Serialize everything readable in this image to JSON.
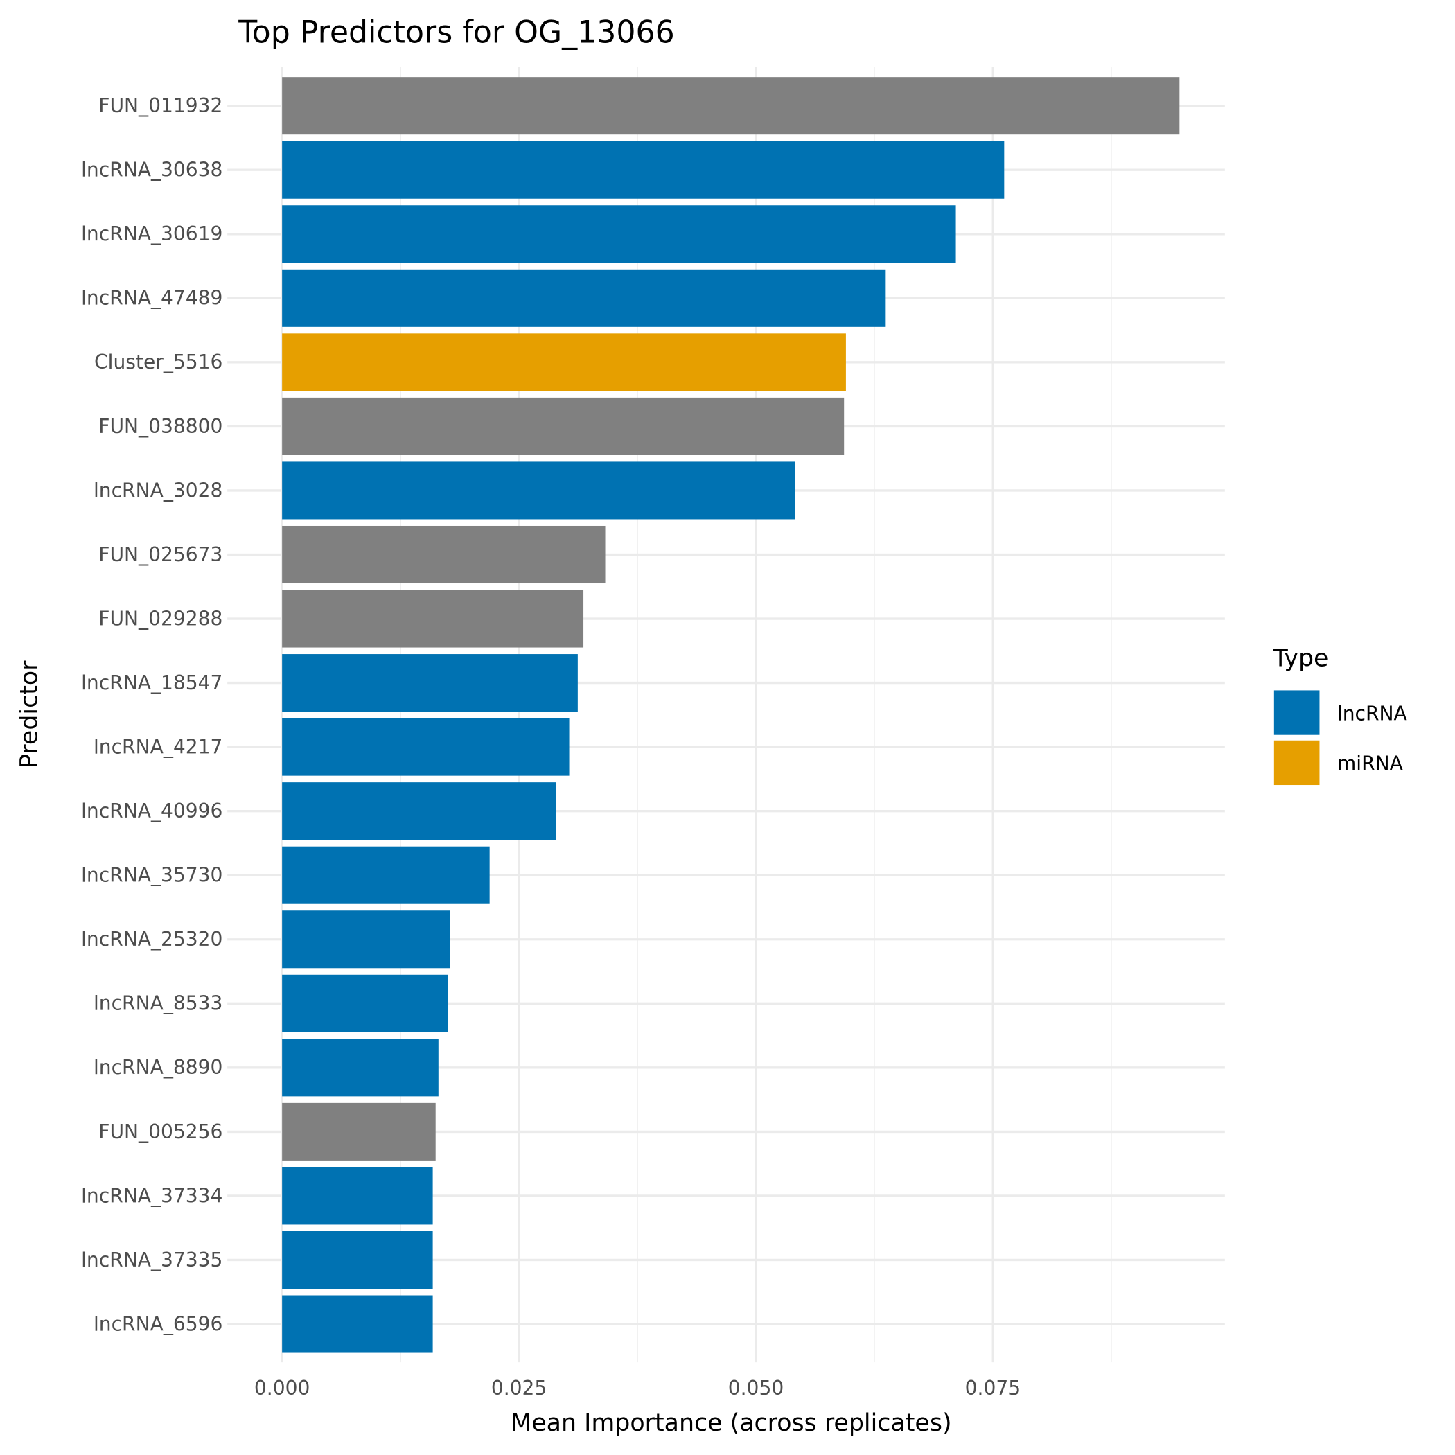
{
  "chart_data": {
    "type": "bar",
    "orientation": "horizontal",
    "title": "Top Predictors for OG_13066",
    "xlabel": "Mean Importance (across replicates)",
    "ylabel": "Predictor",
    "xlim": [
      0,
      0.0995
    ],
    "xticks": [
      0,
      0.025,
      0.05,
      0.075
    ],
    "xtick_labels": [
      "0.000",
      "0.025",
      "0.050",
      "0.075"
    ],
    "grid": true,
    "categories": [
      "FUN_011932",
      "lncRNA_30638",
      "lncRNA_30619",
      "lncRNA_47489",
      "Cluster_5516",
      "FUN_038800",
      "lncRNA_3028",
      "FUN_025673",
      "FUN_029288",
      "lncRNA_18547",
      "lncRNA_4217",
      "lncRNA_40996",
      "lncRNA_35730",
      "lncRNA_25320",
      "lncRNA_8533",
      "lncRNA_8890",
      "FUN_005256",
      "lncRNA_37334",
      "lncRNA_37335",
      "lncRNA_6596"
    ],
    "values": [
      0.0947,
      0.0762,
      0.0711,
      0.0637,
      0.0595,
      0.0593,
      0.0541,
      0.0341,
      0.0318,
      0.0312,
      0.0303,
      0.0289,
      0.0219,
      0.0177,
      0.0175,
      0.0165,
      0.0162,
      0.0159,
      0.0159,
      0.0159
    ],
    "types": [
      "NA",
      "lncRNA",
      "lncRNA",
      "lncRNA",
      "miRNA",
      "NA",
      "lncRNA",
      "NA",
      "NA",
      "lncRNA",
      "lncRNA",
      "lncRNA",
      "lncRNA",
      "lncRNA",
      "lncRNA",
      "lncRNA",
      "NA",
      "lncRNA",
      "lncRNA",
      "lncRNA"
    ],
    "colors": {
      "lncRNA": "#0072B2",
      "miRNA": "#E69F00",
      "NA": "#808080"
    },
    "legend": {
      "title": "Type",
      "entries": [
        "lncRNA",
        "miRNA"
      ],
      "placement": "right"
    }
  }
}
